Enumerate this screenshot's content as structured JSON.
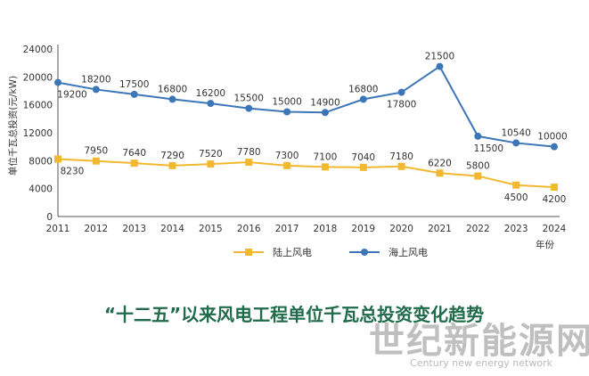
{
  "chart_data": {
    "type": "line",
    "title": "“十二五”以来风电工程单位千瓦总投资变化趋势",
    "xlabel": "年份",
    "ylabel": "单位千瓦总投资(元/kW)",
    "x": [
      "2011",
      "2012",
      "2013",
      "2014",
      "2015",
      "2016",
      "2017",
      "2018",
      "2019",
      "2020",
      "2021",
      "2022",
      "2023",
      "2024"
    ],
    "ylim": [
      0,
      24000
    ],
    "yticks": [
      0,
      4000,
      8000,
      12000,
      16000,
      20000,
      24000
    ],
    "grid": false,
    "legend_position": "bottom",
    "series": [
      {
        "name": "陆上风电",
        "color": "#f2b830",
        "marker": "square",
        "values": [
          8230,
          7950,
          7640,
          7290,
          7520,
          7780,
          7300,
          7100,
          7040,
          7180,
          6220,
          5800,
          4500,
          4200
        ],
        "labels": [
          "8230",
          "7950",
          "7640",
          "7290",
          "7520",
          "7780",
          "7300",
          "7100",
          "7040",
          "7180",
          "6220",
          "5800",
          "4500",
          "4200"
        ]
      },
      {
        "name": "海上风电",
        "color": "#3d76b8",
        "marker": "circle",
        "values": [
          19200,
          18200,
          17500,
          16800,
          16200,
          15500,
          15000,
          14900,
          16800,
          17800,
          21500,
          11500,
          10540,
          10000
        ],
        "labels": [
          "19200",
          "18200",
          "17500",
          "16800",
          "16200",
          "15500",
          "15000",
          "14900",
          "16800",
          "17800",
          "21500",
          "11500",
          "10540",
          "10000"
        ]
      }
    ]
  },
  "watermark": {
    "main": "世纪新能源网",
    "sub": "Century new energy network"
  }
}
